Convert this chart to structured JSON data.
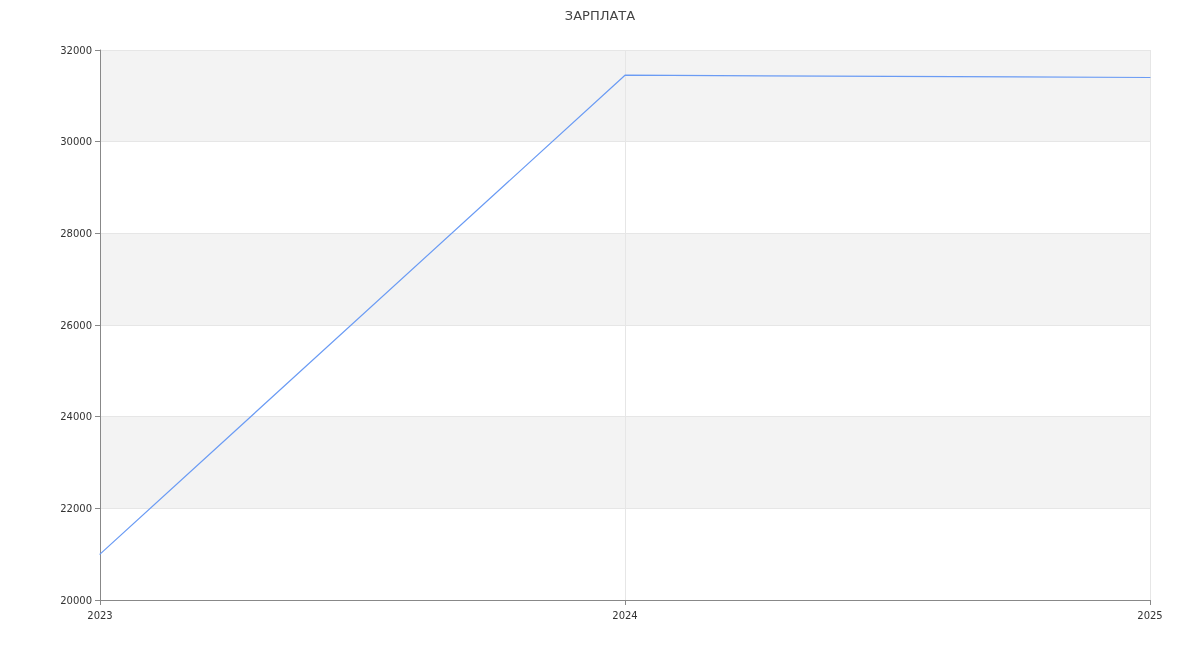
{
  "chart_data": {
    "type": "line",
    "title": "ЗАРПЛАТА",
    "x": [
      2023,
      2024,
      2025
    ],
    "values": [
      21000,
      31450,
      31400
    ],
    "color": "#6a9bf4",
    "xlim": [
      2023,
      2025
    ],
    "xticks": [
      2023,
      2024,
      2025
    ],
    "ylim": [
      20000,
      32000
    ],
    "yticks": [
      20000,
      22000,
      24000,
      26000,
      28000,
      30000,
      32000
    ],
    "grid": true,
    "marker": "none",
    "line_style": "solid"
  }
}
